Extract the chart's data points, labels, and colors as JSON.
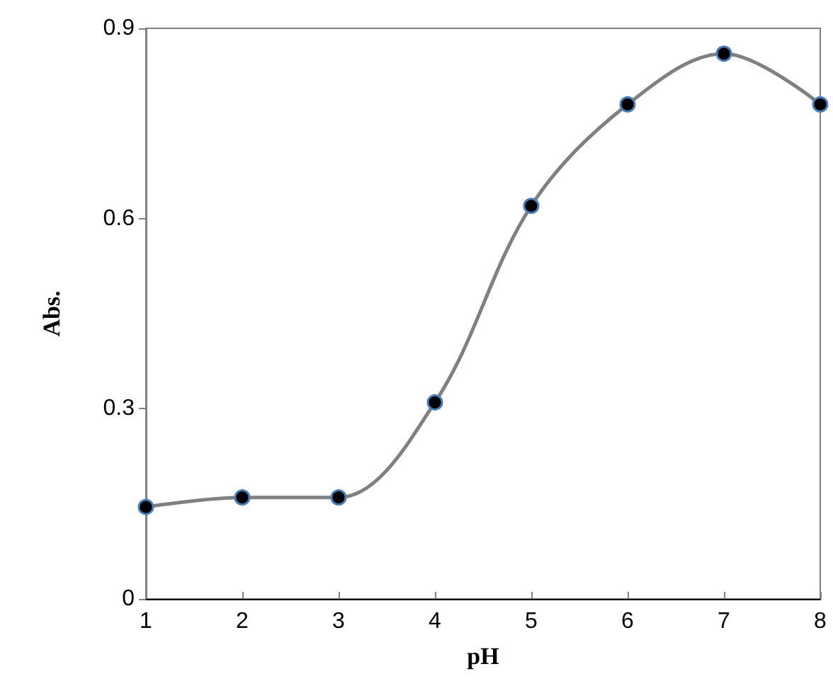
{
  "chart_data": {
    "type": "line",
    "xlabel": "pH",
    "ylabel": "Abs.",
    "x": [
      1,
      2,
      3,
      4,
      5,
      6,
      7,
      8
    ],
    "series": [
      {
        "color": "#808080",
        "values": [
          0.145,
          0.16,
          0.16,
          0.31,
          0.62,
          0.78,
          0.86,
          0.78
        ]
      }
    ],
    "xlim": [
      1,
      8
    ],
    "xticks": [
      1,
      2,
      3,
      4,
      5,
      6,
      7,
      8
    ],
    "ylim": [
      0,
      0.9
    ],
    "yticks": [
      0,
      0.3,
      0.6,
      0.9
    ],
    "grid": false,
    "marker": "circle",
    "line_style": "solid"
  }
}
